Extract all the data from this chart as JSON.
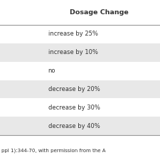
{
  "title": "Dosage Change",
  "rows": [
    {
      "text": "increase by 25%",
      "shaded": false
    },
    {
      "text": "increase by 10%",
      "shaded": true
    },
    {
      "text": "no",
      "shaded": false
    },
    {
      "text": "decrease by 20%",
      "shaded": true
    },
    {
      "text": "decrease by 30%",
      "shaded": false
    },
    {
      "text": "decrease by 40%",
      "shaded": true
    }
  ],
  "footer": "ppl 1):344-70, with permission from the A",
  "bg_color": "#ffffff",
  "shaded_color": "#e8e8e8",
  "header_line_color": "#999999",
  "bottom_line_color": "#999999",
  "text_color": "#333333",
  "title_fontsize": 6.8,
  "row_fontsize": 6.0,
  "footer_fontsize": 5.0,
  "text_indent": 0.3
}
